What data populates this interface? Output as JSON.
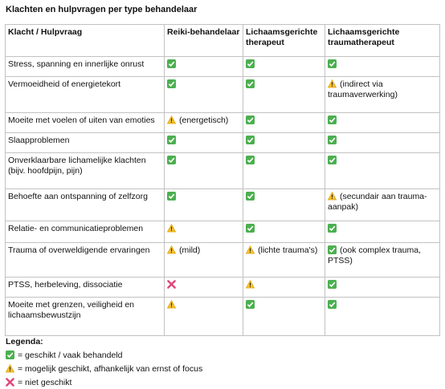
{
  "title": "Klachten en hulpvragen per type behandelaar",
  "table": {
    "header": [
      "Klacht / Hulpvraag",
      "Reiki-behandelaar",
      "Lichaamsgerichte therapeut",
      "Lichaamsgerichte traumatherapeut"
    ],
    "rows": [
      {
        "label": "Stress, spanning en innerlijke onrust",
        "cells": [
          {
            "icon": "check"
          },
          {
            "icon": "check"
          },
          {
            "icon": "check"
          }
        ]
      },
      {
        "label": "Vermoeidheid of energietekort",
        "cells": [
          {
            "icon": "check"
          },
          {
            "icon": "check"
          },
          {
            "icon": "warning",
            "note": "(indirect via traumaverwerking)"
          }
        ]
      },
      {
        "label": "Moeite met voelen of uiten van emoties",
        "cells": [
          {
            "icon": "warning",
            "note": "(energetisch)"
          },
          {
            "icon": "check"
          },
          {
            "icon": "check"
          }
        ]
      },
      {
        "label": "Slaapproblemen",
        "cells": [
          {
            "icon": "check"
          },
          {
            "icon": "check"
          },
          {
            "icon": "check"
          }
        ]
      },
      {
        "label": "Onverklaarbare lichamelijke klachten (bijv. hoofdpijn, pijn)",
        "cells": [
          {
            "icon": "check"
          },
          {
            "icon": "check"
          },
          {
            "icon": "check"
          }
        ]
      },
      {
        "label": "Behoefte aan ontspanning of zelfzorg",
        "cells": [
          {
            "icon": "check"
          },
          {
            "icon": "check"
          },
          {
            "icon": "warning",
            "note": "(secundair aan trauma-aanpak)"
          }
        ]
      },
      {
        "label": "Relatie- en communicatieproblemen",
        "cells": [
          {
            "icon": "warning"
          },
          {
            "icon": "check"
          },
          {
            "icon": "check"
          }
        ]
      },
      {
        "label": "Trauma of overweldigende ervaringen",
        "cells": [
          {
            "icon": "warning",
            "note": "(mild)"
          },
          {
            "icon": "warning",
            "note": "(lichte trauma's)"
          },
          {
            "icon": "check",
            "note": "(ook complex trauma, PTSS)"
          }
        ]
      },
      {
        "label": "PTSS, herbeleving, dissociatie",
        "cells": [
          {
            "icon": "cross"
          },
          {
            "icon": "warning"
          },
          {
            "icon": "check"
          }
        ]
      },
      {
        "label": "Moeite met grenzen, veiligheid en lichaamsbewustzijn",
        "cells": [
          {
            "icon": "warning"
          },
          {
            "icon": "check"
          },
          {
            "icon": "check"
          }
        ]
      }
    ]
  },
  "legend": {
    "title": "Legenda:",
    "items": [
      {
        "icon": "check",
        "text": "= geschikt / vaak behandeld"
      },
      {
        "icon": "warning",
        "text": "= mogelijk geschikt, afhankelijk van ernst of focus"
      },
      {
        "icon": "cross",
        "text": "= niet geschikt"
      }
    ]
  }
}
